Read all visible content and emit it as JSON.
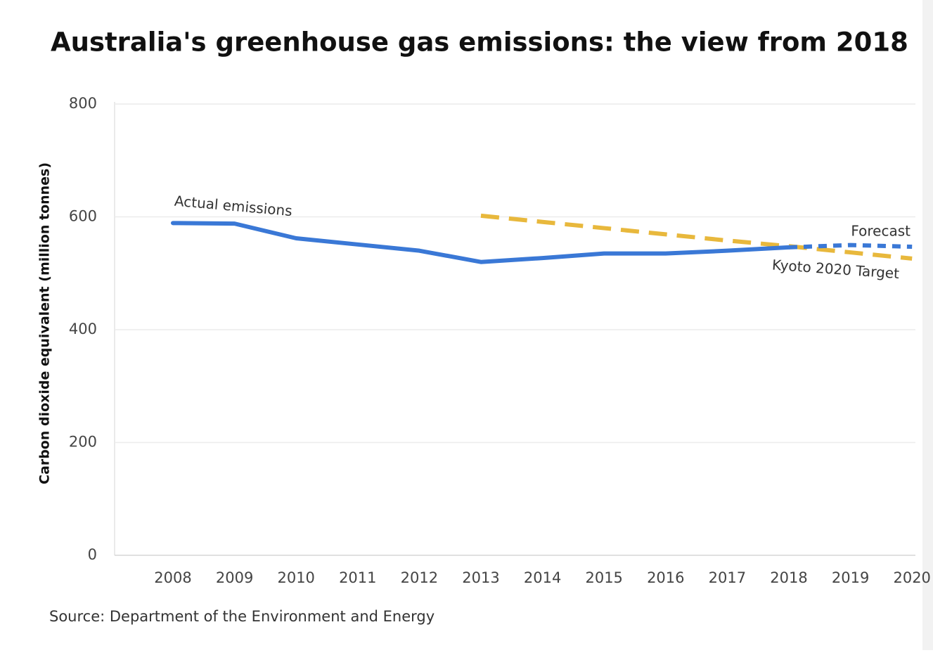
{
  "chart_data": {
    "type": "line",
    "title": "Australia's greenhouse gas emissions: the view from 2018",
    "y_label": "Carbon dioxide equivalent (million tonnes)",
    "source": "Source: Department of the Environment and Energy",
    "categories": [
      "2008",
      "2009",
      "2010",
      "2011",
      "2012",
      "2013",
      "2014",
      "2015",
      "2016",
      "2017",
      "2018",
      "2019",
      "2020"
    ],
    "ylim": [
      0,
      800
    ],
    "yticks": [
      0,
      200,
      400,
      600,
      800
    ],
    "grid": true,
    "series": [
      {
        "name": "Actual emissions",
        "color": "#3a78d6",
        "style": "solid",
        "values": [
          589,
          588,
          562,
          551,
          540,
          520,
          527,
          535,
          535,
          540,
          546,
          null,
          null
        ]
      },
      {
        "name": "Forecast",
        "color": "#3a78d6",
        "style": "dotted",
        "values": [
          null,
          null,
          null,
          null,
          null,
          null,
          null,
          null,
          null,
          null,
          546,
          550,
          547
        ]
      },
      {
        "name": "Kyoto 2020 Target",
        "color": "#e8b83c",
        "style": "dashed",
        "values": [
          null,
          null,
          null,
          null,
          null,
          602,
          591,
          580,
          569,
          558,
          548,
          537,
          526
        ]
      }
    ]
  }
}
